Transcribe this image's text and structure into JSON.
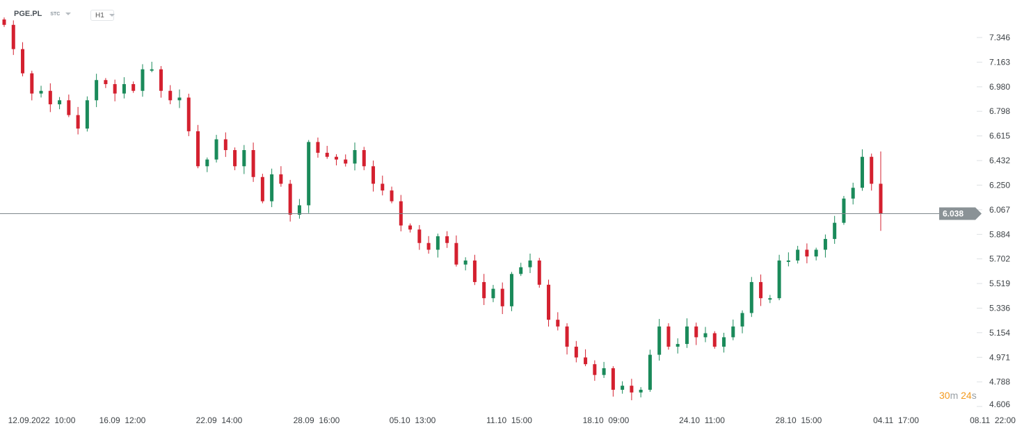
{
  "header": {
    "symbol": "PGE.PL",
    "instrument_type": "STC",
    "timeframe": "H1"
  },
  "colors": {
    "up": "#1a8a5a",
    "down": "#d4202f",
    "price_line": "#7d878c",
    "price_label_bg": "#8a9296"
  },
  "price_axis": {
    "ticks": [
      "7.346",
      "7.163",
      "6.980",
      "6.798",
      "6.615",
      "6.432",
      "6.250",
      "6.067",
      "5.884",
      "5.702",
      "5.519",
      "5.336",
      "5.154",
      "4.971",
      "4.788",
      "4.606"
    ]
  },
  "time_axis": {
    "ticks": [
      "12.09.2022  10:00",
      "16.09  12:00",
      "22.09  14:00",
      "28.09  16:00",
      "05.10  13:00",
      "11.10  15:00",
      "18.10  09:00",
      "24.10  11:00",
      "28.10  15:00",
      "04.11  17:00",
      "08.11  22:00"
    ]
  },
  "current_price": "6.038",
  "countdown": {
    "minutes": "30",
    "m_unit": "m",
    "seconds": "24",
    "s_unit": "s"
  },
  "chart_data": {
    "type": "candlestick",
    "ylim": [
      4.606,
      7.346
    ],
    "closes": [
      7.44,
      7.26,
      7.08,
      6.93,
      6.95,
      6.85,
      6.88,
      6.77,
      6.67,
      6.88,
      7.03,
      7.0,
      6.93,
      7.0,
      6.95,
      7.11,
      7.11,
      6.95,
      6.88,
      6.9,
      6.65,
      6.39,
      6.44,
      6.59,
      6.51,
      6.39,
      6.51,
      6.31,
      6.13,
      6.33,
      6.26,
      6.03,
      6.1,
      6.57,
      6.49,
      6.46,
      6.44,
      6.41,
      6.51,
      6.39,
      6.26,
      6.21,
      6.13,
      5.95,
      5.92,
      5.82,
      5.77,
      5.87,
      5.82,
      5.66,
      5.69,
      5.53,
      5.41,
      5.48,
      5.35,
      5.59,
      5.64,
      5.69,
      5.51,
      5.25,
      5.2,
      5.05,
      4.97,
      4.92,
      4.84,
      4.89,
      4.73,
      4.76,
      4.71,
      4.73,
      4.99,
      5.2,
      5.05,
      5.07,
      5.2,
      5.12,
      5.15,
      5.05,
      5.12,
      5.2,
      5.3,
      5.53,
      5.41,
      5.41,
      5.69,
      5.69,
      5.77,
      5.72,
      5.77,
      5.85,
      5.97,
      6.15,
      6.23,
      6.46,
      6.26,
      6.04
    ],
    "last_candle": {
      "open": 6.26,
      "high": 6.5,
      "low": 5.91,
      "close": 6.04
    }
  }
}
